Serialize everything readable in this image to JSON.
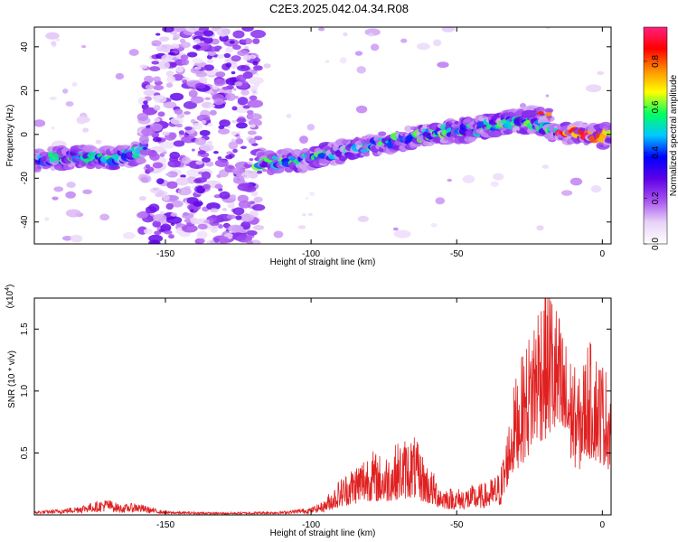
{
  "title": "C2E3.2025.042.04.34.R08",
  "chart_data": [
    {
      "type": "heatmap",
      "xlabel": "Height of straight line (km)",
      "ylabel": "Frequency (Hz)",
      "xlim": [
        -195,
        3
      ],
      "ylim": [
        -50,
        49
      ],
      "xticks": [
        -150,
        -100,
        -50,
        0
      ],
      "yticks": [
        40,
        20,
        0,
        -20,
        -40
      ],
      "colorbar": {
        "label": "Normalized spectral amplitude",
        "range": [
          0,
          0.95
        ],
        "ticks": [
          0.0,
          0.2,
          0.4,
          0.6,
          0.8
        ],
        "colors": [
          "#ffffff",
          "#e8d2f8",
          "#a852f0",
          "#5e00e8",
          "#0000ff",
          "#00c8ff",
          "#00ff60",
          "#ffff00",
          "#ff9000",
          "#ff0000",
          "#ff2080"
        ]
      },
      "ridges": [
        {
          "name": "",
          "x": [
            -195,
            -180,
            -170,
            -160,
            -157
          ],
          "y": [
            -12,
            -10,
            -11,
            -9,
            -6
          ]
        },
        {
          "name": "",
          "x": [
            -118,
            -100,
            -80,
            -60,
            -45,
            -35,
            -25,
            -18
          ],
          "y": [
            -13,
            -11,
            -5,
            0,
            3,
            5,
            7,
            8
          ]
        },
        {
          "name": "",
          "x": [
            -55,
            -45,
            -35,
            -25,
            -18,
            -12,
            -5,
            0,
            3
          ],
          "y": [
            1,
            2,
            5,
            6,
            2,
            1,
            0,
            -1,
            0
          ]
        }
      ]
    },
    {
      "type": "line",
      "xlabel": "Height of straight line (km)",
      "ylabel": "SNR (10 * v/v)",
      "yscale_label": "(x10",
      "yscale_exp": "4",
      "xlim": [
        -195,
        3
      ],
      "ylim": [
        0,
        1.75
      ],
      "xticks": [
        -150,
        -100,
        -50,
        0
      ],
      "yticks": [
        0.5,
        1.0,
        1.5
      ],
      "color": "#e02020",
      "envelope": {
        "x": [
          -195,
          -185,
          -175,
          -170,
          -165,
          -160,
          -155,
          -150,
          -130,
          -110,
          -100,
          -95,
          -90,
          -85,
          -80,
          -75,
          -70,
          -65,
          -60,
          -55,
          -50,
          -45,
          -40,
          -35,
          -30,
          -25,
          -22,
          -18,
          -15,
          -12,
          -8,
          -5,
          0,
          3
        ],
        "y": [
          0.03,
          0.05,
          0.1,
          0.13,
          0.08,
          0.1,
          0.06,
          0.03,
          0.02,
          0.03,
          0.06,
          0.12,
          0.25,
          0.35,
          0.45,
          0.4,
          0.5,
          0.55,
          0.35,
          0.2,
          0.18,
          0.2,
          0.22,
          0.3,
          1.0,
          1.35,
          1.65,
          1.75,
          1.5,
          1.25,
          1.0,
          1.3,
          1.15,
          1.0
        ]
      }
    }
  ]
}
